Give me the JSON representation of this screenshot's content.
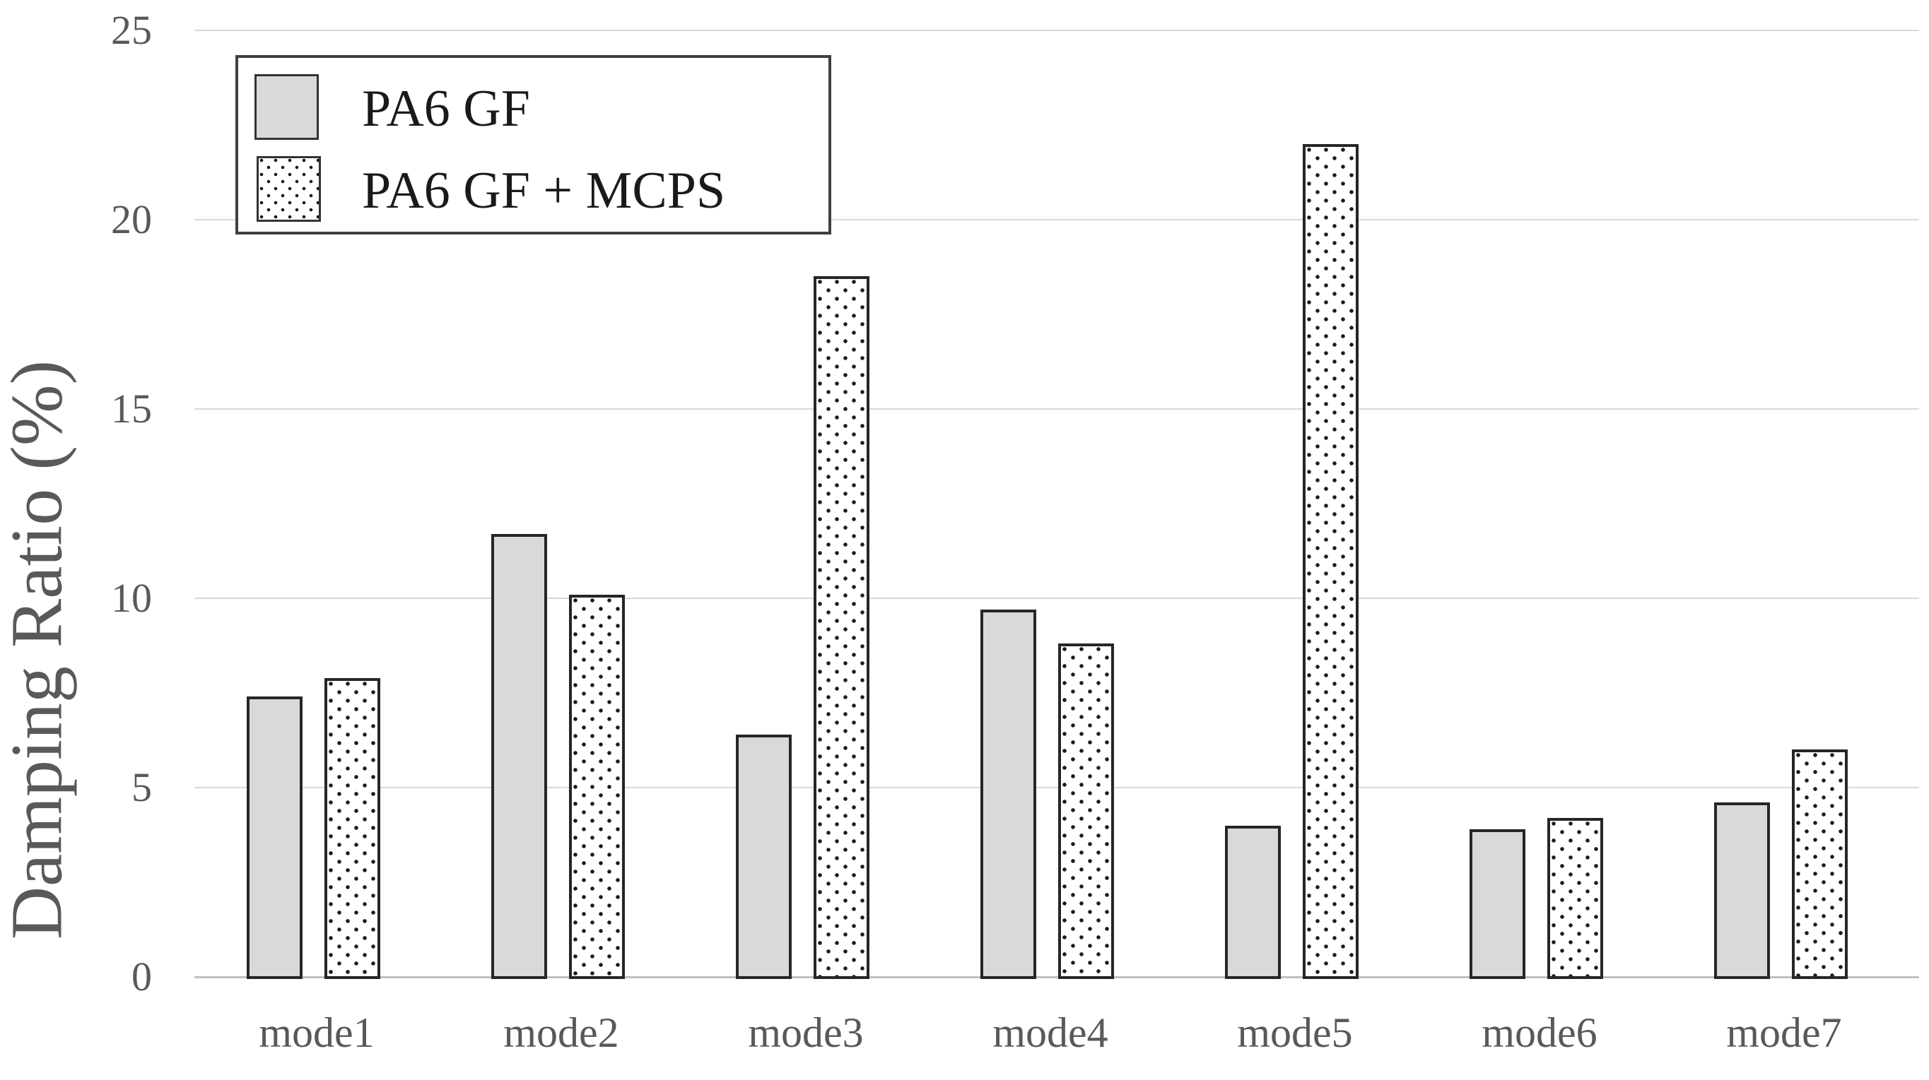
{
  "figure": {
    "legend": {
      "items": [
        {
          "label": "PA6 GF",
          "swatch": "solid-gray"
        },
        {
          "label": "PA6 GF + MCPS",
          "swatch": "dotted-white"
        }
      ]
    },
    "colors": {
      "solid_bar_fill": "#d9d9d9",
      "bar_border": "#262626",
      "gridline": "#d9d9d9",
      "axis_line": "#c0c0c0",
      "axis_text": "#595959",
      "legend_border": "#404040",
      "legend_text": "#1a1a1a",
      "background": "#ffffff"
    }
  },
  "chart_data": {
    "type": "bar",
    "title": "",
    "xlabel": "",
    "ylabel": "Damping Ratio (%)",
    "categories": [
      "mode1",
      "mode2",
      "mode3",
      "mode4",
      "mode5",
      "mode6",
      "mode7"
    ],
    "series": [
      {
        "name": "PA6 GF",
        "style": "solid",
        "values": [
          7.4,
          11.7,
          6.4,
          9.7,
          4.0,
          3.9,
          4.6
        ]
      },
      {
        "name": "PA6 GF + MCPS",
        "style": "dotted",
        "values": [
          7.9,
          10.1,
          18.5,
          8.8,
          22.0,
          4.2,
          6.0
        ]
      }
    ],
    "ylim": [
      0,
      25
    ],
    "yticks": [
      0,
      5,
      10,
      15,
      20,
      25
    ],
    "grid": true,
    "legend_position": "top-left"
  }
}
